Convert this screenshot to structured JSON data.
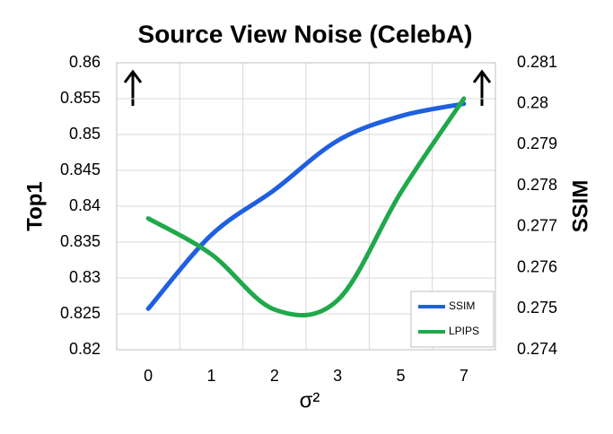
{
  "chart_data": {
    "type": "line",
    "title": "Source View Noise (CelebA)",
    "x_label": "σ²",
    "y_label": "Top1",
    "y2_label": "SSIM",
    "categories": [
      "0",
      "1",
      "2",
      "3",
      "5",
      "7"
    ],
    "series": [
      {
        "name": "SSIM",
        "color": "#1f5fe0",
        "axis": "y2",
        "values": [
          0.275,
          0.2768,
          0.2779,
          0.2791,
          0.2797,
          0.28
        ]
      },
      {
        "name": "LPIPS",
        "color": "#20a84a",
        "values": [
          0.8383,
          0.8333,
          0.8256,
          0.8269,
          0.8419,
          0.855
        ]
      }
    ],
    "ylim": [
      0.82,
      0.86
    ],
    "yticks": [
      0.82,
      0.825,
      0.83,
      0.835,
      0.84,
      0.845,
      0.85,
      0.855,
      0.86
    ],
    "y2lim": [
      0.274,
      0.281
    ],
    "y2ticks": [
      0.274,
      0.275,
      0.276,
      0.277,
      0.278,
      0.279,
      0.28,
      0.281
    ],
    "grid": true,
    "legend": "lower right"
  }
}
